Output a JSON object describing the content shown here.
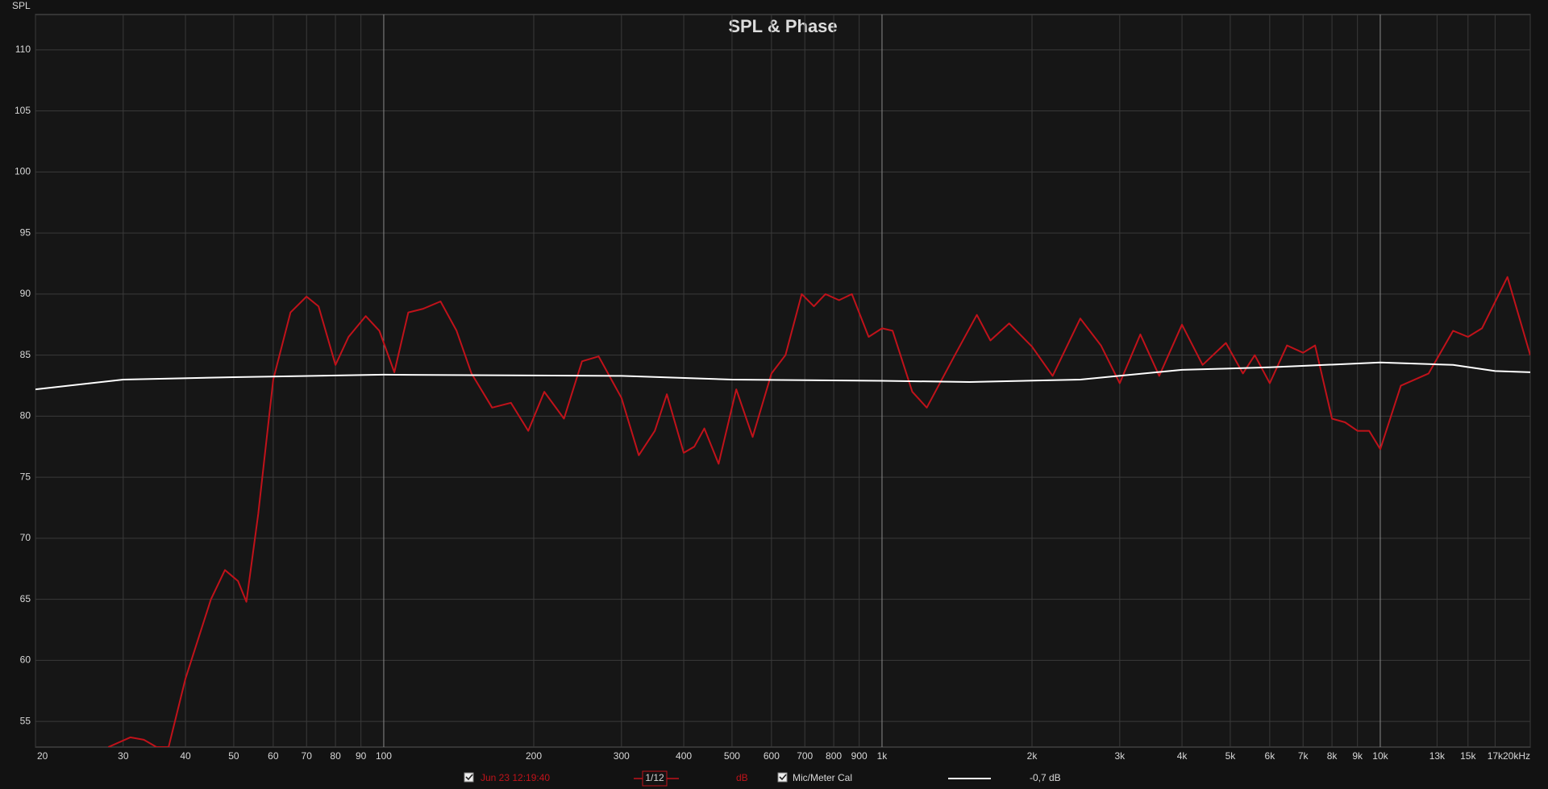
{
  "chart_data": {
    "type": "line",
    "title": "SPL & Phase",
    "y_label": "SPL",
    "xscale": "log",
    "grid": true,
    "xlim": [
      20,
      20000
    ],
    "ylim": [
      52.9,
      112.9
    ],
    "yticks": [
      55,
      60,
      65,
      70,
      75,
      80,
      85,
      90,
      95,
      100,
      105,
      110
    ],
    "xticks": [
      20,
      30,
      40,
      50,
      60,
      70,
      80,
      90,
      100,
      200,
      300,
      400,
      500,
      600,
      700,
      800,
      900,
      {
        "value": 1000,
        "label": "1k"
      },
      {
        "value": 2000,
        "label": "2k"
      },
      {
        "value": 3000,
        "label": "3k"
      },
      {
        "value": 4000,
        "label": "4k"
      },
      {
        "value": 5000,
        "label": "5k"
      },
      {
        "value": 6000,
        "label": "6k"
      },
      {
        "value": 7000,
        "label": "7k"
      },
      {
        "value": 8000,
        "label": "8k"
      },
      {
        "value": 9000,
        "label": "9k"
      },
      {
        "value": 10000,
        "label": "10k"
      },
      {
        "value": 13000,
        "label": "13k"
      },
      {
        "value": 15000,
        "label": "15k"
      },
      {
        "value": 17000,
        "label": "17k"
      },
      {
        "value": 20000,
        "label": "20kHz"
      }
    ],
    "smoothing": "1/12",
    "unit": "dB",
    "offset": "-0,7 dB",
    "series": [
      {
        "name": "Jun 23 12:19:40",
        "color": "#c0121a",
        "x": [
          28,
          31,
          33,
          35,
          37,
          40,
          45,
          48,
          51,
          53,
          56,
          60,
          65,
          70,
          74,
          80,
          85,
          92,
          98,
          105,
          112,
          120,
          130,
          140,
          150,
          165,
          180,
          195,
          210,
          230,
          250,
          270,
          300,
          325,
          350,
          370,
          400,
          420,
          440,
          470,
          510,
          550,
          600,
          640,
          690,
          730,
          770,
          820,
          870,
          940,
          1000,
          1050,
          1150,
          1230,
          1400,
          1550,
          1650,
          1800,
          2000,
          2200,
          2500,
          2750,
          3000,
          3300,
          3600,
          4000,
          4400,
          4900,
          5300,
          5600,
          6000,
          6500,
          7000,
          7400,
          8000,
          8500,
          9000,
          9500,
          10000,
          11000,
          12500,
          14000,
          15000,
          16000,
          18000,
          20000
        ],
        "values": [
          52.9,
          53.7,
          53.5,
          52.9,
          52.9,
          58.5,
          65,
          67.4,
          66.5,
          64.8,
          72,
          83,
          88.5,
          89.8,
          89,
          84.2,
          86.5,
          88.2,
          87,
          83.6,
          88.5,
          88.8,
          89.4,
          87,
          83.5,
          80.7,
          81.1,
          78.8,
          82,
          79.8,
          84.5,
          84.9,
          81.5,
          76.8,
          78.8,
          81.8,
          77,
          77.5,
          79,
          76.1,
          82.2,
          78.3,
          83.5,
          85,
          90,
          89,
          90,
          89.5,
          90,
          86.5,
          87.2,
          87,
          82,
          80.7,
          85,
          88.3,
          86.2,
          87.6,
          85.7,
          83.3,
          88,
          85.8,
          82.7,
          86.7,
          83.3,
          87.5,
          84.2,
          86,
          83.5,
          85,
          82.7,
          85.8,
          85.2,
          85.8,
          79.8,
          79.5,
          78.8,
          78.8,
          77.3,
          82.5,
          83.5,
          87,
          86.5,
          87.2,
          91.4,
          85
        ]
      },
      {
        "name": "Mic/Meter Cal",
        "color": "#ffffff",
        "x": [
          20,
          30,
          50,
          100,
          300,
          500,
          1000,
          1500,
          2500,
          4000,
          6000,
          10000,
          14000,
          17000,
          20000
        ],
        "values": [
          82.2,
          83,
          83.2,
          83.4,
          83.3,
          83,
          82.9,
          82.8,
          83,
          83.8,
          84,
          84.4,
          84.2,
          83.7,
          83.6
        ]
      }
    ]
  }
}
